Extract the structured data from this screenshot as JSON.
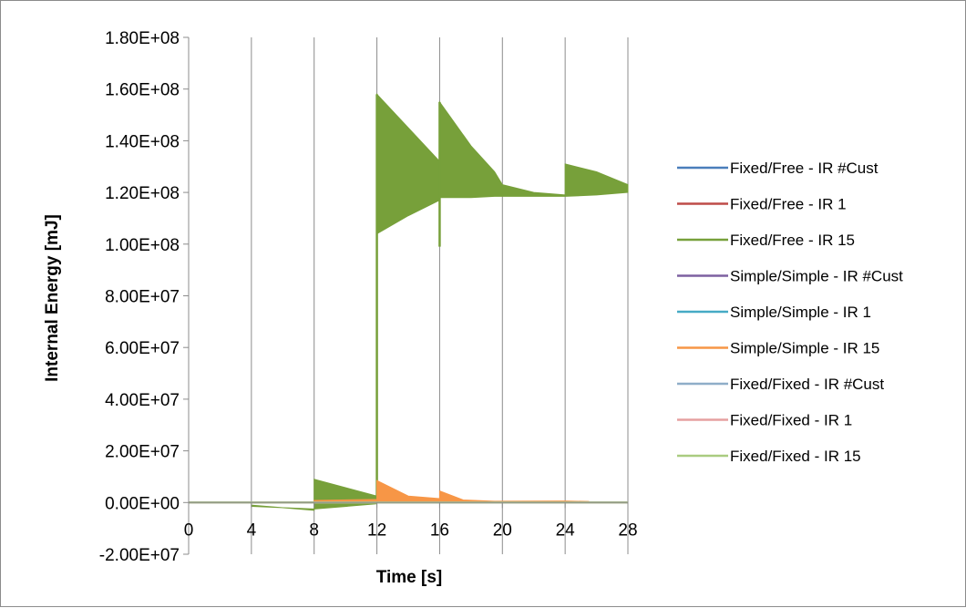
{
  "chart_data": {
    "type": "line",
    "title": "",
    "xlabel": "Time [s]",
    "ylabel": "Internal Energy [mJ]",
    "xlim": [
      0,
      28
    ],
    "ylim": [
      -20000000,
      180000000
    ],
    "x_ticks": [
      0,
      4,
      8,
      12,
      16,
      20,
      24,
      28
    ],
    "x_tick_labels": [
      "0",
      "4",
      "8",
      "12",
      "16",
      "20",
      "24",
      "28"
    ],
    "y_ticks": [
      180000000,
      160000000,
      140000000,
      120000000,
      100000000,
      80000000,
      60000000,
      40000000,
      20000000,
      0,
      -20000000
    ],
    "y_tick_labels": [
      "1.80E+08",
      "1.60E+08",
      "1.40E+08",
      "1.20E+08",
      "1.00E+08",
      "8.00E+07",
      "6.00E+07",
      "4.00E+07",
      "2.00E+07",
      "0.00E+00",
      "-2.00E+07"
    ],
    "grid": "vertical",
    "legend_position": "right",
    "series": [
      {
        "name": "Fixed/Free - IR #Cust",
        "color": "#4a7ebb",
        "x": [
          0,
          28
        ],
        "y": [
          0,
          0
        ]
      },
      {
        "name": "Fixed/Free - IR 1",
        "color": "#be4b48",
        "x": [
          0,
          28
        ],
        "y": [
          0,
          0
        ]
      },
      {
        "name": "Fixed/Free - IR 15",
        "color": "#77a03a",
        "band_x": [
          4,
          8,
          8,
          12,
          12,
          14,
          16,
          16,
          18,
          19.5,
          20,
          22,
          24,
          24,
          26,
          28
        ],
        "band_upper": [
          -1500000,
          -2500000,
          9000000,
          2500000,
          158000000,
          145000000,
          132000000,
          155000000,
          138000000,
          128000000,
          123000000,
          120000000,
          119000000,
          131000000,
          128000000,
          123000000
        ],
        "band_lower": [
          -1000000,
          -3000000,
          -2500000,
          -500000,
          104000000,
          111000000,
          117000000,
          118000000,
          118000000,
          118500000,
          118500000,
          118500000,
          118500000,
          118500000,
          119000000,
          120000000
        ],
        "spikes": [
          [
            12,
            0,
            158000000
          ],
          [
            16,
            99000000,
            155000000
          ]
        ]
      },
      {
        "name": "Simple/Simple - IR #Cust",
        "color": "#7d60a0",
        "x": [
          0,
          28
        ],
        "y": [
          0,
          0
        ]
      },
      {
        "name": "Simple/Simple - IR 1",
        "color": "#46aac5",
        "x": [
          0,
          28
        ],
        "y": [
          0,
          0
        ]
      },
      {
        "name": "Simple/Simple - IR 15",
        "color": "#f79646",
        "band_x": [
          8,
          12,
          12,
          14,
          16,
          16,
          17.5,
          19.5,
          24,
          25.5
        ],
        "band_upper": [
          800000,
          1200000,
          8500000,
          2500000,
          1500000,
          4500000,
          1000000,
          500000,
          600000,
          400000
        ],
        "band_lower": [
          0,
          0,
          0,
          0,
          0,
          0,
          0,
          0,
          0,
          0
        ]
      },
      {
        "name": "Fixed/Fixed - IR #Cust",
        "color": "#8faec8",
        "x": [
          0,
          28
        ],
        "y": [
          0,
          0
        ]
      },
      {
        "name": "Fixed/Fixed - IR 1",
        "color": "#e6a0a0",
        "x": [
          0,
          28
        ],
        "y": [
          0,
          0
        ]
      },
      {
        "name": "Fixed/Fixed - IR 15",
        "color": "#aacc80",
        "x": [
          0,
          28
        ],
        "y": [
          0,
          0
        ]
      }
    ]
  }
}
